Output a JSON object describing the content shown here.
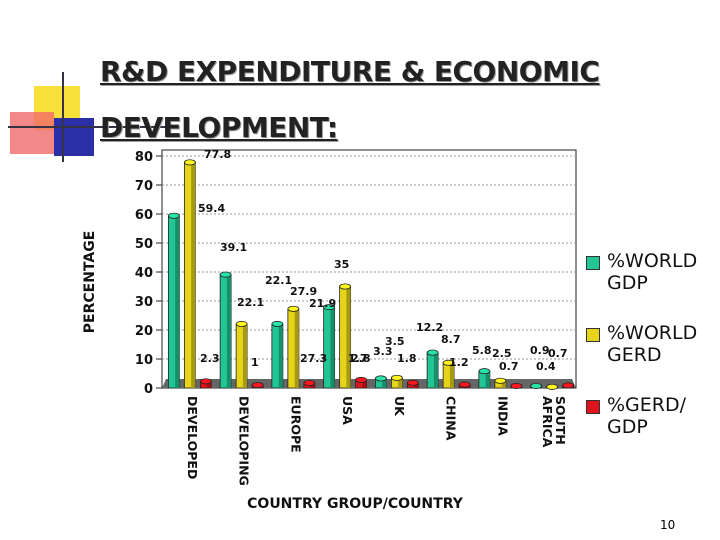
{
  "slide": {
    "title_line1": "R&D EXPENDITURE & ECONOMIC",
    "title_line2": "DEVELOPMENT:",
    "page_number": "10"
  },
  "colors": {
    "world_gdp": "#22c593",
    "world_gerd": "#e6d41a",
    "gerd_gdp": "#e0141c",
    "floor": "#666666"
  },
  "chart_data": {
    "type": "bar",
    "xlabel": "COUNTRY GROUP/COUNTRY",
    "ylabel": "PERCENTAGE",
    "ylim": [
      0,
      80
    ],
    "yticks": [
      0,
      10,
      20,
      30,
      40,
      50,
      60,
      70,
      80
    ],
    "grid": true,
    "legend_position": "right",
    "categories": [
      "DEVELOPED",
      "DEVELOPING",
      "EUROPE",
      "USA",
      "UK",
      "CHINA",
      "INDIA",
      "SOUTH AFRICA"
    ],
    "series": [
      {
        "name": "%WORLD GDP",
        "values": [
          59.4,
          39.1,
          22.1,
          27.9,
          3.3,
          12.2,
          5.8,
          0.7
        ]
      },
      {
        "name": "%WORLD GERD",
        "values": [
          77.8,
          22.1,
          27.3,
          35,
          3.5,
          8.7,
          2.5,
          0.4
        ]
      },
      {
        "name": "%GERD/ GDP",
        "values": [
          2.3,
          1,
          1.7,
          2.8,
          1.8,
          1.2,
          0.7,
          0.9
        ]
      }
    ],
    "data_labels": [
      [
        "59.4",
        "77.8",
        "2.3"
      ],
      [
        "39.1",
        "22.1",
        "1"
      ],
      [
        "22.1",
        "27.9",
        "27.3"
      ],
      [
        "21.9",
        "35",
        "1.7"
      ],
      [
        "2.8",
        "3.3",
        "3.5"
      ],
      [
        "1.8",
        "12.2",
        "8.7"
      ],
      [
        "1.2",
        "5.8",
        "2.5"
      ],
      [
        "0.7",
        "0.9",
        "0.7"
      ],
      [
        "0.4",
        "",
        ""
      ]
    ]
  }
}
